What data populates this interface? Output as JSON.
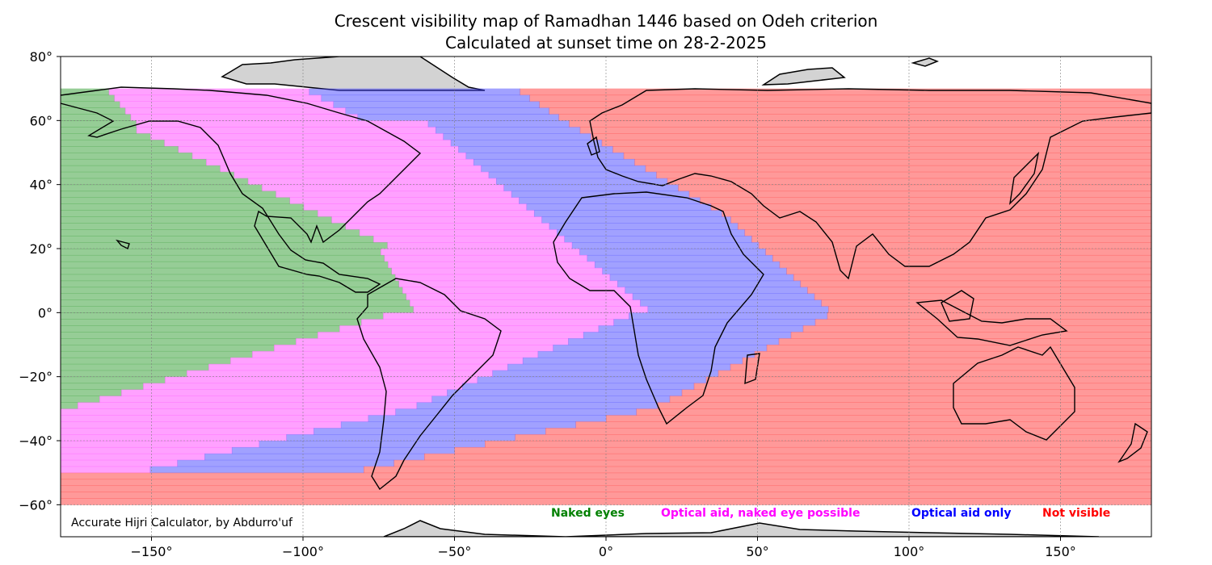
{
  "title_line1": "Crescent visibility map of Ramadhan 1446 based on Odeh criterion",
  "title_line2": "Calculated at sunset time on 28-2-2025",
  "credit": "Accurate Hijri Calculator, by Abdurro'uf",
  "colors": {
    "naked_eyes": "#2e9c2e",
    "optical_aid_naked_eye_possible": "#ff44ff",
    "optical_aid_only": "#4444ff",
    "not_visible": "#ff3333",
    "land": "#d3d3d3",
    "border": "#000000"
  },
  "legend": [
    {
      "label": "Naked eyes",
      "color": "#008000"
    },
    {
      "label": "Optical aid, naked eye possible",
      "color": "#ff00ff"
    },
    {
      "label": "Optical aid only",
      "color": "#0000ff"
    },
    {
      "label": "Not visible",
      "color": "#ff0000"
    }
  ],
  "x_ticks": [
    "−150°",
    "−100°",
    "−50°",
    "0°",
    "50°",
    "100°",
    "150°"
  ],
  "y_ticks": [
    "80°",
    "60°",
    "40°",
    "20°",
    "0°",
    "−20°",
    "−40°",
    "−60°"
  ],
  "map": {
    "projection": "equirectangular",
    "lon_range": [
      -180,
      180
    ],
    "lat_range": [
      -70,
      80
    ],
    "lon_ticks": [
      -150,
      -100,
      -50,
      0,
      50,
      100,
      150
    ],
    "lat_ticks": [
      80,
      60,
      40,
      20,
      0,
      -20,
      -40,
      -60
    ],
    "grid": true,
    "shaded_lat_range": [
      -60,
      70
    ]
  }
}
